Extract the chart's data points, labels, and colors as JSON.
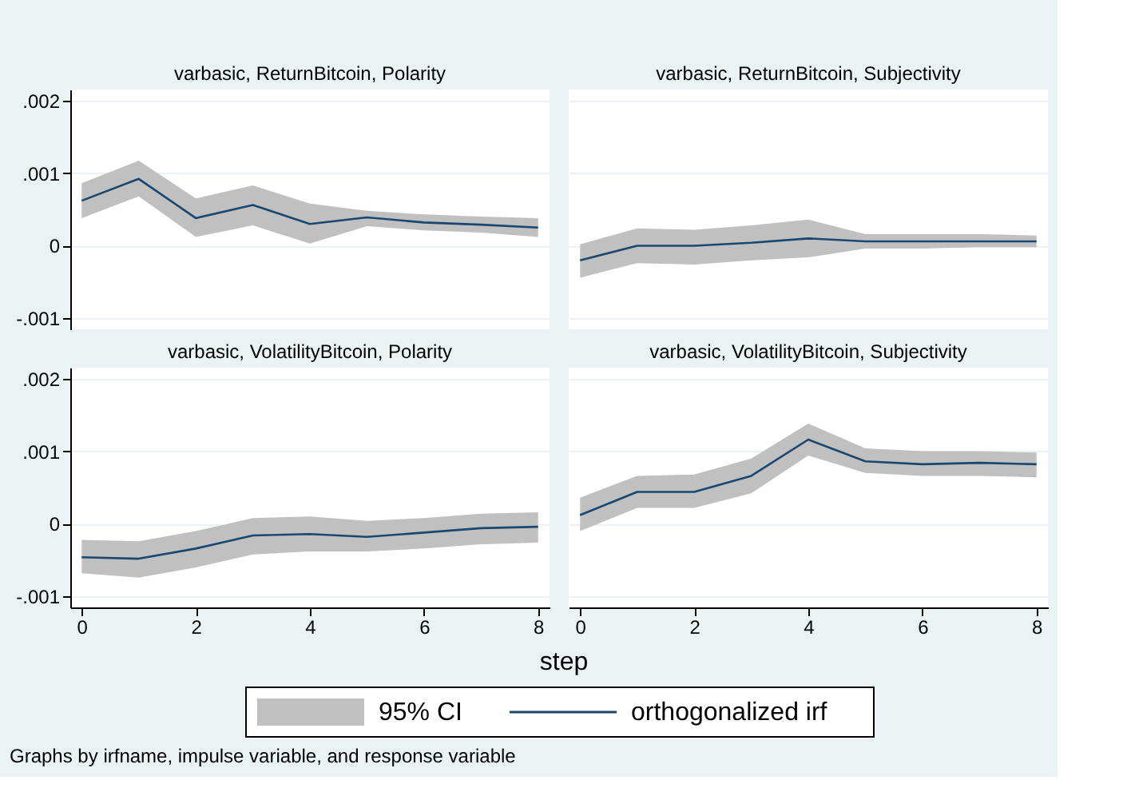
{
  "chart_data": [
    {
      "type": "line",
      "title": "varbasic, ReturnBitcoin, Polarity",
      "x": [
        0,
        1,
        2,
        3,
        4,
        5,
        6,
        7,
        8
      ],
      "xlim": [
        -0.2,
        8.2
      ],
      "xticks": [
        0,
        2,
        4,
        6,
        8
      ],
      "ylim": [
        -0.00115,
        0.00215
      ],
      "yticks": [
        {
          "value": -0.001,
          "label": "-.001"
        },
        {
          "value": 0,
          "label": "0"
        },
        {
          "value": 0.001,
          "label": ".001"
        },
        {
          "value": 0.002,
          "label": ".002"
        }
      ],
      "grid": "y",
      "tick_labels": "y",
      "series": [
        {
          "color": "#1a476f",
          "values": [
            0.00062,
            0.00092,
            0.00038,
            0.00056,
            0.0003,
            0.00039,
            0.00032,
            0.00029,
            0.00025
          ],
          "lower": [
            0.00038,
            0.00068,
            0.00012,
            0.00028,
            3e-05,
            0.00027,
            0.00021,
            0.00018,
            0.00012
          ],
          "upper": [
            0.00086,
            0.00117,
            0.00065,
            0.00083,
            0.00058,
            0.00048,
            0.00043,
            0.0004,
            0.00038
          ]
        }
      ]
    },
    {
      "type": "line",
      "title": "varbasic, ReturnBitcoin, Subjectivity",
      "x": [
        0,
        1,
        2,
        3,
        4,
        5,
        6,
        7,
        8
      ],
      "xlim": [
        -0.2,
        8.2
      ],
      "xticks": [
        0,
        2,
        4,
        6,
        8
      ],
      "ylim": [
        -0.00115,
        0.00215
      ],
      "yticks": [
        -0.001,
        0,
        0.001,
        0.002
      ],
      "grid": "y",
      "tick_labels": false,
      "series": [
        {
          "color": "#1a476f",
          "values": [
            -0.0002,
            0,
            0,
            4e-05,
            0.0001,
            6e-05,
            6e-05,
            6e-05,
            6e-05
          ],
          "lower": [
            -0.00044,
            -0.00024,
            -0.00026,
            -0.0002,
            -0.00016,
            -4e-05,
            -4e-05,
            -2e-05,
            -2e-05
          ],
          "upper": [
            2e-05,
            0.00024,
            0.00022,
            0.00028,
            0.00036,
            0.00016,
            0.00016,
            0.00016,
            0.00014
          ]
        }
      ]
    },
    {
      "type": "line",
      "title": "varbasic, VolatilityBitcoin, Polarity",
      "x": [
        0,
        1,
        2,
        3,
        4,
        5,
        6,
        7,
        8
      ],
      "xlim": [
        -0.2,
        8.2
      ],
      "xticks": [
        0,
        2,
        4,
        6,
        8
      ],
      "ylim": [
        -0.00115,
        0.00215
      ],
      "yticks": [
        {
          "value": -0.001,
          "label": "-.001"
        },
        {
          "value": 0,
          "label": "0"
        },
        {
          "value": 0.001,
          "label": ".001"
        },
        {
          "value": 0.002,
          "label": ".002"
        }
      ],
      "grid": "y",
      "series": [
        {
          "color": "#1a476f",
          "values": [
            -0.00046,
            -0.00048,
            -0.00034,
            -0.00016,
            -0.00014,
            -0.00018,
            -0.00012,
            -6e-05,
            -4e-05
          ],
          "lower": [
            -0.00068,
            -0.00074,
            -0.0006,
            -0.00042,
            -0.00038,
            -0.00038,
            -0.00034,
            -0.00028,
            -0.00026
          ],
          "upper": [
            -0.00022,
            -0.00024,
            -0.0001,
            8e-05,
            0.0001,
            4e-05,
            8e-05,
            0.00014,
            0.00016
          ]
        }
      ]
    },
    {
      "type": "line",
      "title": "varbasic, VolatilityBitcoin, Subjectivity",
      "x": [
        0,
        1,
        2,
        3,
        4,
        5,
        6,
        7,
        8
      ],
      "xlim": [
        -0.2,
        8.2
      ],
      "xticks": [
        0,
        2,
        4,
        6,
        8
      ],
      "ylim": [
        -0.00115,
        0.00215
      ],
      "yticks": [
        -0.001,
        0,
        0.001,
        0.002
      ],
      "grid": "y",
      "tick_labels": "x",
      "xlabel": "step",
      "legend": "bottom",
      "annotations": [
        "95% CI",
        "Graphs by irfname, impulse variable, and response variable"
      ],
      "series": [
        {
          "name": "orthogonalized irf",
          "color": "#1a476f",
          "values": [
            0.00012,
            0.00044,
            0.00044,
            0.00066,
            0.00116,
            0.00086,
            0.00082,
            0.00084,
            0.00082
          ],
          "lower": [
            -0.0001,
            0.00022,
            0.00022,
            0.00042,
            0.00094,
            0.0007,
            0.00066,
            0.00066,
            0.00064
          ],
          "upper": [
            0.00036,
            0.00066,
            0.00068,
            0.0009,
            0.00138,
            0.00104,
            0.001,
            0.001,
            0.00098
          ]
        }
      ]
    }
  ]
}
